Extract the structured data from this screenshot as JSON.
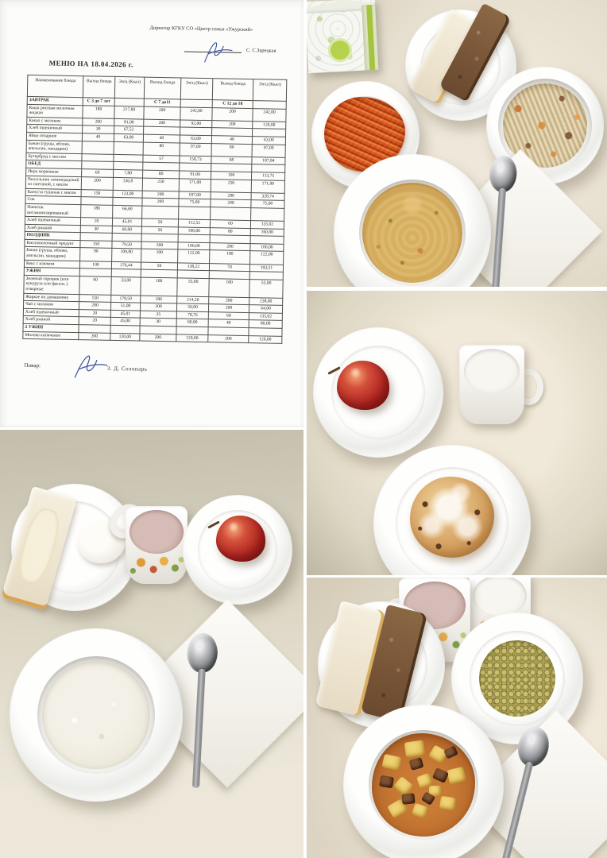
{
  "document": {
    "approval": {
      "line1": "Директор  КГКУ СО «Центр семьи «Ужурский»",
      "signer": "С. С.Зарецкая"
    },
    "title": "МЕНЮ НА   18.04.2026 г.",
    "table": {
      "col_headers": [
        "Наименование блюда",
        "Выход блюда",
        "Эн/ц (Ккал)",
        "Выход блюда",
        "Эн/ц (Ккал)",
        "Выход блюда",
        "Эн/ц (Ккал)"
      ],
      "rows": [
        {
          "name": "ЗАВТРАК",
          "sec": true,
          "cells": [
            "С 3 до 7 лет",
            "",
            "С 7 до11",
            "",
            "С 12 до 18",
            ""
          ]
        },
        {
          "name": "Каша рисовая молочная жидкая",
          "cells": [
            "180",
            "217,80",
            "200",
            "242,00",
            "200",
            "242,00"
          ]
        },
        {
          "name": "Какао с молоком",
          "cells": [
            "200",
            "81,00",
            "200",
            "92,00",
            "200",
            "120,00"
          ]
        },
        {
          "name": "Хлеб пшеничный",
          "cells": [
            "30",
            "67,52",
            "",
            "",
            "",
            ""
          ]
        },
        {
          "name": "Яйцо отварное",
          "cells": [
            "40",
            "63,00",
            "40",
            "63,00",
            "40",
            "63,00"
          ]
        },
        {
          "name": "Банан (груша, яблоко, апельсин, мандарин)",
          "cells": [
            "",
            "",
            "80",
            "97,00",
            "80",
            "97,00"
          ]
        },
        {
          "name": "Бутерброд с маслом",
          "cells": [
            "",
            "",
            "57",
            "158,73",
            "68",
            "187,84"
          ]
        },
        {
          "name": "ОБЕД",
          "sec": true,
          "cells": [
            "",
            "",
            "",
            "",
            "",
            ""
          ]
        },
        {
          "name": "Икра морковная",
          "cells": [
            "60",
            "7,80",
            "80",
            "91,00",
            "100",
            "113,75"
          ]
        },
        {
          "name": "Рассольник ленинградский со сметаной, с мясом",
          "cells": [
            "200",
            "136.8",
            "250",
            "171,00",
            "250",
            "171,00"
          ]
        },
        {
          "name": "Капуста тушеная с мясом",
          "cells": [
            "150",
            "123,00",
            "200",
            "187,00",
            "280",
            "328,74"
          ]
        },
        {
          "name": "Сок",
          "cells": [
            "",
            "",
            "200",
            "75,00",
            "200",
            "75,00"
          ]
        },
        {
          "name": "Напиток витаминизированный",
          "cells": [
            "180",
            "66,60",
            "",
            "",
            "",
            ""
          ]
        },
        {
          "name": "Хлеб пшеничный",
          "cells": [
            "20",
            "45,01",
            "50",
            "112,52",
            "60",
            "135,02"
          ]
        },
        {
          "name": "Хлеб ржаной",
          "cells": [
            "30",
            "60,00",
            "50",
            "100,00",
            "80",
            "160,00"
          ]
        },
        {
          "name": "ПОЛДНИК",
          "sec": true,
          "cells": [
            "",
            "",
            "",
            "",
            "",
            ""
          ]
        },
        {
          "name": "Кисломолочный продукт",
          "cells": [
            "150",
            "79,50",
            "200",
            "106,00",
            "200",
            "106,00"
          ]
        },
        {
          "name": "Банан (груша, яблоко, апельсин, мандарин)",
          "cells": [
            "90",
            "109,80",
            "100",
            "122,00",
            "100",
            "122,00"
          ]
        },
        {
          "name": "Кекс с изюмом",
          "cells": [
            "100",
            "276,44",
            "50",
            "138,22",
            "70",
            "193,51"
          ]
        },
        {
          "name": "УЖИН",
          "sec": true,
          "cells": [
            "",
            "",
            "",
            "",
            "",
            ""
          ]
        },
        {
          "name": "Зеленый горошек (или кукуруза или фасоль ) отварные",
          "cells": [
            "60",
            "33,00",
            "100",
            "55,00",
            "100",
            "55,00"
          ]
        },
        {
          "name": "Жаркое по домашнему",
          "cells": [
            "150",
            "178,50",
            "180",
            "214,20",
            "200",
            "238,00"
          ]
        },
        {
          "name": "Чай с молоком",
          "cells": [
            "200",
            "51,00",
            "200",
            "59,00",
            "200",
            "64,00"
          ]
        },
        {
          "name": "Хлеб пшеничный",
          "cells": [
            "20",
            "45,01",
            "35",
            "78,76",
            "60",
            "135,02"
          ]
        },
        {
          "name": "Хлеб ржаной",
          "cells": [
            "20",
            "45,00",
            "30",
            "60,00",
            "40",
            "80,00"
          ]
        },
        {
          "name": "2 УЖИН",
          "sec": true,
          "cells": [
            "",
            "",
            "",
            "",
            "",
            ""
          ]
        },
        {
          "name": "Молоко кипяченое",
          "cells": [
            "200",
            "120,00",
            "200",
            "120,00",
            "200",
            "120,00"
          ]
        }
      ]
    },
    "footer": {
      "label": "Повар:",
      "name": "З. Д. Солонарь"
    }
  },
  "photos": {
    "lunch": {
      "semantic": "обед: сок, хлеб, икра морковная, капуста тушеная с мясом, рассольник"
    },
    "snack": {
      "semantic": "полдник: яблоко, кисломолочный продукт, кекс с изюмом"
    },
    "breakfast": {
      "semantic": "завтрак: бутерброд с маслом, яйцо, какао, яблоко, каша рисовая молочная"
    },
    "dinner": {
      "semantic": "ужин: чай с молоком, молоко, хлеб, зеленый горошек, жаркое по-домашнему"
    }
  },
  "colors": {
    "tablecloth_beige": "#e7dfd1",
    "tablecloth_gray": "#c3bdac",
    "carrot_salad": "#d4571f",
    "soup": "#d7af61",
    "stewed_cabbage": "#d8c79b",
    "green_peas": "#aba052",
    "stew_sauce": "#b86a2c",
    "potato": "#e0bd55",
    "apple_red": "#ad2420",
    "cocoa": "#c9aca6",
    "rye_bread": "#775437",
    "white_bread": "#f0e8d5",
    "signature_ink": "#3a4fa0"
  }
}
